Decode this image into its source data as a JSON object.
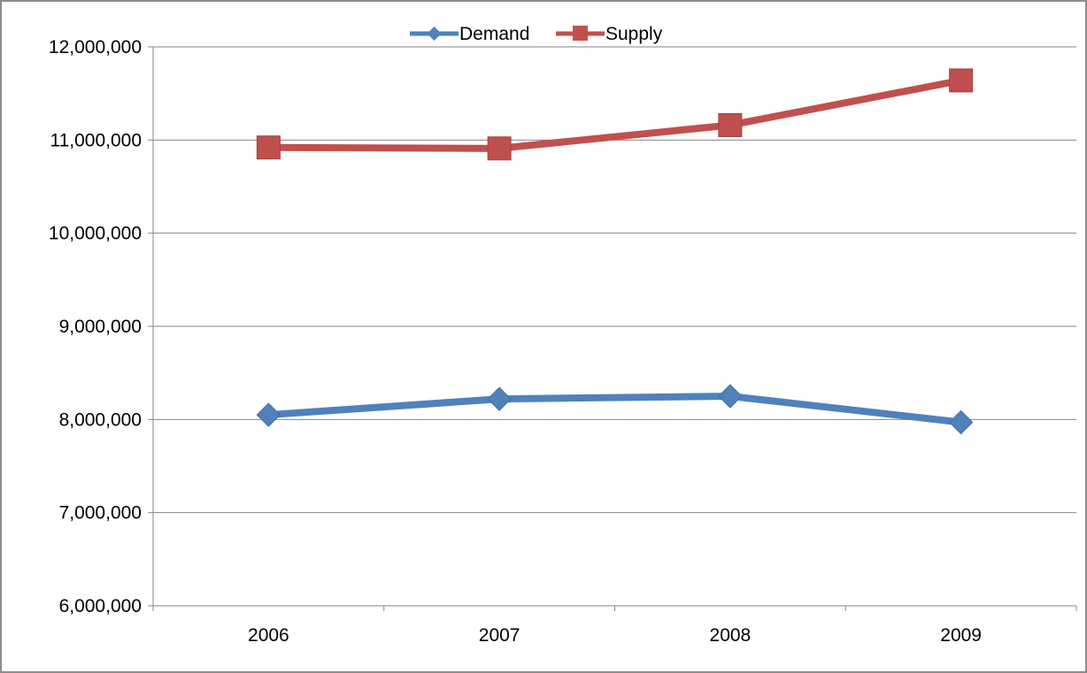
{
  "chart_data": {
    "type": "line",
    "title": "",
    "xlabel": "",
    "ylabel": "",
    "categories": [
      "2006",
      "2007",
      "2008",
      "2009"
    ],
    "series": [
      {
        "name": "Demand",
        "color": "#4f81bd",
        "marker": "diamond",
        "values": [
          8050000,
          8220000,
          8250000,
          7970000
        ]
      },
      {
        "name": "Supply",
        "color": "#c0504d",
        "marker": "square",
        "values": [
          10920000,
          10910000,
          11160000,
          11640000
        ]
      }
    ],
    "ylim": [
      6000000,
      12000000
    ],
    "yticks": [
      6000000,
      7000000,
      8000000,
      9000000,
      10000000,
      11000000,
      12000000
    ],
    "ytick_labels": [
      "6,000,000",
      "7,000,000",
      "8,000,000",
      "9,000,000",
      "10,000,000",
      "11,000,000",
      "12,000,000"
    ],
    "grid": true,
    "legend_position": "top"
  }
}
